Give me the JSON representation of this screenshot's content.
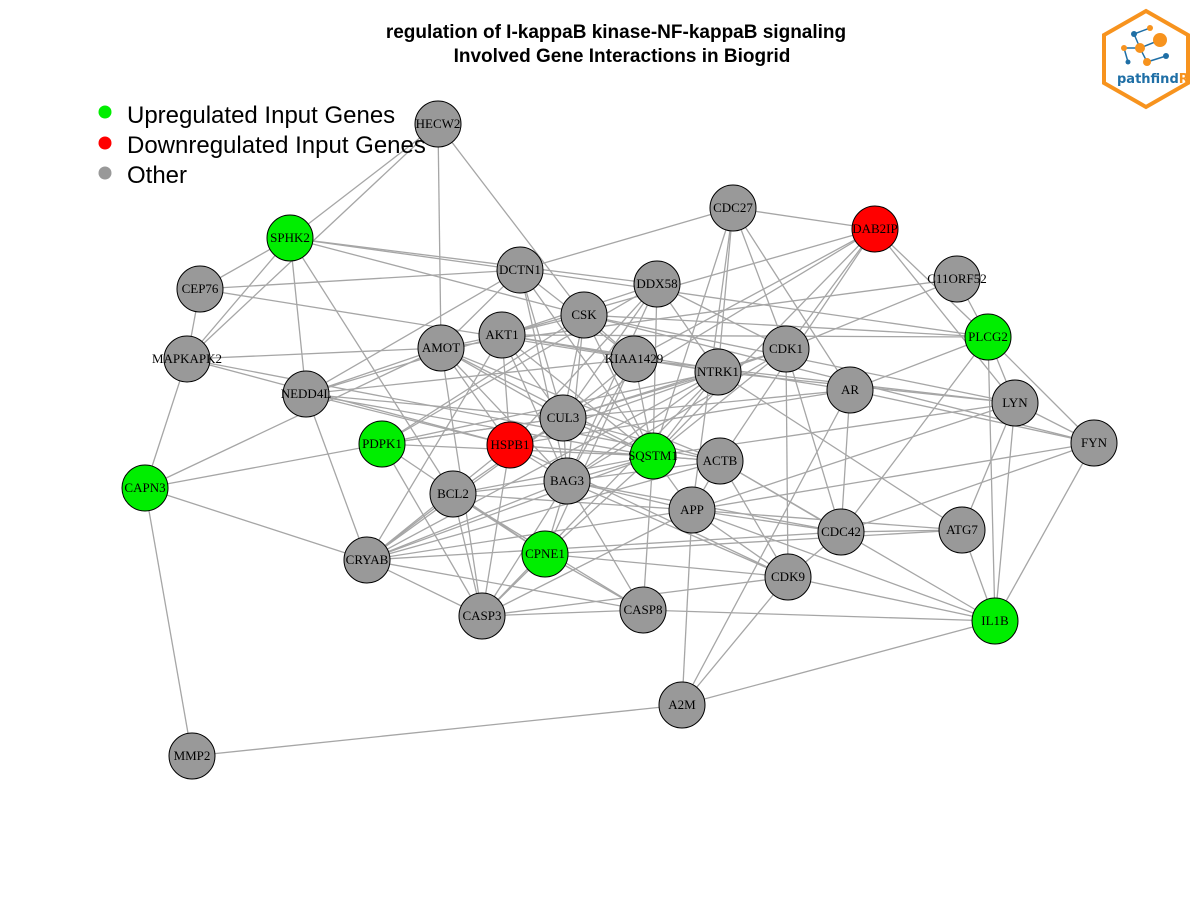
{
  "title": {
    "line1": "regulation of I-kappaB kinase-NF-kappaB signaling",
    "line2": "Involved Gene Interactions in Biogrid"
  },
  "legend": [
    {
      "label": "Upregulated Input Genes",
      "color": "#00ee00"
    },
    {
      "label": "Downregulated Input Genes",
      "color": "#ff0000"
    },
    {
      "label": "Other",
      "color": "#999999"
    }
  ],
  "logo": {
    "text_a": "pathfind",
    "text_b": "R",
    "color_border": "#f7931e",
    "color_text": "#1f6fa6"
  },
  "colors": {
    "up": "#00ee00",
    "down": "#ff0000",
    "other": "#999999",
    "edge": "#a6a6a6"
  },
  "nodes": [
    {
      "id": "HECW2",
      "status": "other"
    },
    {
      "id": "CDC27",
      "status": "other"
    },
    {
      "id": "DAB2IP",
      "status": "down"
    },
    {
      "id": "SPHK2",
      "status": "up"
    },
    {
      "id": "C11ORF52",
      "status": "other"
    },
    {
      "id": "DCTN1",
      "status": "other"
    },
    {
      "id": "DDX58",
      "status": "other"
    },
    {
      "id": "CEP76",
      "status": "other"
    },
    {
      "id": "CSK",
      "status": "other"
    },
    {
      "id": "PLCG2",
      "status": "up"
    },
    {
      "id": "AKT1",
      "status": "other"
    },
    {
      "id": "AMOT",
      "status": "other"
    },
    {
      "id": "CDK1",
      "status": "other"
    },
    {
      "id": "MAPKAPK2",
      "status": "other"
    },
    {
      "id": "KIAA1429",
      "status": "other"
    },
    {
      "id": "NTRK1",
      "status": "other"
    },
    {
      "id": "AR",
      "status": "other"
    },
    {
      "id": "NEDD4L",
      "status": "other"
    },
    {
      "id": "LYN",
      "status": "other"
    },
    {
      "id": "CUL3",
      "status": "other"
    },
    {
      "id": "FYN",
      "status": "other"
    },
    {
      "id": "PDPK1",
      "status": "up"
    },
    {
      "id": "HSPB1",
      "status": "down"
    },
    {
      "id": "SQSTM1",
      "status": "up"
    },
    {
      "id": "ACTB",
      "status": "other"
    },
    {
      "id": "CAPN3",
      "status": "up"
    },
    {
      "id": "BAG3",
      "status": "other"
    },
    {
      "id": "BCL2",
      "status": "other"
    },
    {
      "id": "APP",
      "status": "other"
    },
    {
      "id": "ATG7",
      "status": "other"
    },
    {
      "id": "CDC42",
      "status": "other"
    },
    {
      "id": "CPNE1",
      "status": "up"
    },
    {
      "id": "CRYAB",
      "status": "other"
    },
    {
      "id": "CDK9",
      "status": "other"
    },
    {
      "id": "CASP3",
      "status": "other"
    },
    {
      "id": "CASP8",
      "status": "other"
    },
    {
      "id": "IL1B",
      "status": "up"
    },
    {
      "id": "A2M",
      "status": "other"
    },
    {
      "id": "MMP2",
      "status": "other"
    }
  ],
  "edges": [
    [
      "HECW2",
      "SPHK2"
    ],
    [
      "HECW2",
      "AMOT"
    ],
    [
      "HECW2",
      "CSK"
    ],
    [
      "HECW2",
      "MAPKAPK2"
    ],
    [
      "CDC27",
      "DCTN1"
    ],
    [
      "CDC27",
      "DAB2IP"
    ],
    [
      "CDC27",
      "NTRK1"
    ],
    [
      "CDC27",
      "AR"
    ],
    [
      "CDC27",
      "APP"
    ],
    [
      "CDC27",
      "SQSTM1"
    ],
    [
      "CDC27",
      "CDK1"
    ],
    [
      "DAB2IP",
      "AKT1"
    ],
    [
      "DAB2IP",
      "PLCG2"
    ],
    [
      "DAB2IP",
      "LYN"
    ],
    [
      "DAB2IP",
      "ACTB"
    ],
    [
      "DAB2IP",
      "SQSTM1"
    ],
    [
      "DAB2IP",
      "CDK1"
    ],
    [
      "DAB2IP",
      "KIAA1429"
    ],
    [
      "DAB2IP",
      "CUL3"
    ],
    [
      "SPHK2",
      "DCTN1"
    ],
    [
      "SPHK2",
      "DDX58"
    ],
    [
      "SPHK2",
      "CSK"
    ],
    [
      "SPHK2",
      "MAPKAPK2"
    ],
    [
      "SPHK2",
      "NEDD4L"
    ],
    [
      "SPHK2",
      "BCL2"
    ],
    [
      "SPHK2",
      "CEP76"
    ],
    [
      "C11ORF52",
      "AMOT"
    ],
    [
      "C11ORF52",
      "CDK1"
    ],
    [
      "C11ORF52",
      "PLCG2"
    ],
    [
      "DCTN1",
      "CEP76"
    ],
    [
      "DCTN1",
      "NEDD4L"
    ],
    [
      "DCTN1",
      "CUL3"
    ],
    [
      "DCTN1",
      "SQSTM1"
    ],
    [
      "DCTN1",
      "BAG3"
    ],
    [
      "DCTN1",
      "PLCG2"
    ],
    [
      "DCTN1",
      "KIAA1429"
    ],
    [
      "DCTN1",
      "AMOT"
    ],
    [
      "DDX58",
      "AKT1"
    ],
    [
      "DDX58",
      "SQSTM1"
    ],
    [
      "DDX58",
      "NTRK1"
    ],
    [
      "DDX58",
      "HSPB1"
    ],
    [
      "DDX58",
      "BAG3"
    ],
    [
      "DDX58",
      "CUL3"
    ],
    [
      "DDX58",
      "CDK1"
    ],
    [
      "DDX58",
      "PDPK1"
    ],
    [
      "CEP76",
      "MAPKAPK2"
    ],
    [
      "CEP76",
      "NTRK1"
    ],
    [
      "CSK",
      "AKT1"
    ],
    [
      "CSK",
      "KIAA1429"
    ],
    [
      "CSK",
      "LYN"
    ],
    [
      "CSK",
      "FYN"
    ],
    [
      "CSK",
      "PLCG2"
    ],
    [
      "CSK",
      "PDPK1"
    ],
    [
      "CSK",
      "SQSTM1"
    ],
    [
      "CSK",
      "BAG3"
    ],
    [
      "CSK",
      "CUL3"
    ],
    [
      "PLCG2",
      "LYN"
    ],
    [
      "PLCG2",
      "FYN"
    ],
    [
      "PLCG2",
      "AKT1"
    ],
    [
      "PLCG2",
      "IL1B"
    ],
    [
      "PLCG2",
      "CDC42"
    ],
    [
      "PLCG2",
      "AR"
    ],
    [
      "AKT1",
      "AMOT"
    ],
    [
      "AKT1",
      "HSPB1"
    ],
    [
      "AKT1",
      "CUL3"
    ],
    [
      "AKT1",
      "BAG3"
    ],
    [
      "AKT1",
      "SQSTM1"
    ],
    [
      "AKT1",
      "NEDD4L"
    ],
    [
      "AKT1",
      "CRYAB"
    ],
    [
      "AKT1",
      "AR"
    ],
    [
      "AKT1",
      "NTRK1"
    ],
    [
      "AMOT",
      "MAPKAPK2"
    ],
    [
      "AMOT",
      "NEDD4L"
    ],
    [
      "AMOT",
      "CUL3"
    ],
    [
      "AMOT",
      "HSPB1"
    ],
    [
      "AMOT",
      "SQSTM1"
    ],
    [
      "AMOT",
      "ACTB"
    ],
    [
      "AMOT",
      "CAPN3"
    ],
    [
      "AMOT",
      "CASP3"
    ],
    [
      "AMOT",
      "BAG3"
    ],
    [
      "CDK1",
      "NTRK1"
    ],
    [
      "CDK1",
      "CUL3"
    ],
    [
      "CDK1",
      "BAG3"
    ],
    [
      "CDK1",
      "CDC42"
    ],
    [
      "CDK1",
      "CDK9"
    ],
    [
      "CDK1",
      "SQSTM1"
    ],
    [
      "MAPKAPK2",
      "HSPB1"
    ],
    [
      "MAPKAPK2",
      "CAPN3"
    ],
    [
      "MAPKAPK2",
      "ACTB"
    ],
    [
      "KIAA1429",
      "CUL3"
    ],
    [
      "KIAA1429",
      "SQSTM1"
    ],
    [
      "KIAA1429",
      "BAG3"
    ],
    [
      "KIAA1429",
      "CPNE1"
    ],
    [
      "KIAA1429",
      "LYN"
    ],
    [
      "KIAA1429",
      "NEDD4L"
    ],
    [
      "NTRK1",
      "SQSTM1"
    ],
    [
      "NTRK1",
      "CUL3"
    ],
    [
      "NTRK1",
      "BAG3"
    ],
    [
      "NTRK1",
      "LYN"
    ],
    [
      "NTRK1",
      "ATG7"
    ],
    [
      "NTRK1",
      "PDPK1"
    ],
    [
      "NTRK1",
      "CRYAB"
    ],
    [
      "NTRK1",
      "CASP3"
    ],
    [
      "NTRK1",
      "HSPB1"
    ],
    [
      "AR",
      "HSPB1"
    ],
    [
      "AR",
      "CDC42"
    ],
    [
      "AR",
      "A2M"
    ],
    [
      "AR",
      "CUL3"
    ],
    [
      "AR",
      "FYN"
    ],
    [
      "NEDD4L",
      "CRYAB"
    ],
    [
      "NEDD4L",
      "CUL3"
    ],
    [
      "NEDD4L",
      "SQSTM1"
    ],
    [
      "LYN",
      "FYN"
    ],
    [
      "LYN",
      "IL1B"
    ],
    [
      "LYN",
      "ATG7"
    ],
    [
      "LYN",
      "APP"
    ],
    [
      "LYN",
      "SQSTM1"
    ],
    [
      "CUL3",
      "SQSTM1"
    ],
    [
      "CUL3",
      "BAG3"
    ],
    [
      "CUL3",
      "PDPK1"
    ],
    [
      "CUL3",
      "BCL2"
    ],
    [
      "CUL3",
      "CRYAB"
    ],
    [
      "CUL3",
      "ACTB"
    ],
    [
      "FYN",
      "IL1B"
    ],
    [
      "FYN",
      "CDC42"
    ],
    [
      "FYN",
      "APP"
    ],
    [
      "PDPK1",
      "CUL3"
    ],
    [
      "PDPK1",
      "SQSTM1"
    ],
    [
      "PDPK1",
      "CASP3"
    ],
    [
      "PDPK1",
      "CAPN3"
    ],
    [
      "PDPK1",
      "CPNE1"
    ],
    [
      "HSPB1",
      "SQSTM1"
    ],
    [
      "HSPB1",
      "BAG3"
    ],
    [
      "HSPB1",
      "CASP3"
    ],
    [
      "HSPB1",
      "CRYAB"
    ],
    [
      "HSPB1",
      "ACTB"
    ],
    [
      "HSPB1",
      "CDK9"
    ],
    [
      "HSPB1",
      "NEDD4L"
    ],
    [
      "SQSTM1",
      "BAG3"
    ],
    [
      "SQSTM1",
      "ACTB"
    ],
    [
      "SQSTM1",
      "APP"
    ],
    [
      "SQSTM1",
      "BCL2"
    ],
    [
      "SQSTM1",
      "CRYAB"
    ],
    [
      "SQSTM1",
      "CASP8"
    ],
    [
      "SQSTM1",
      "CPNE1"
    ],
    [
      "ACTB",
      "BAG3"
    ],
    [
      "ACTB",
      "APP"
    ],
    [
      "ACTB",
      "CDC42"
    ],
    [
      "ACTB",
      "CRYAB"
    ],
    [
      "ACTB",
      "CDK9"
    ],
    [
      "ACTB",
      "IL1B"
    ],
    [
      "CAPN3",
      "MMP2"
    ],
    [
      "CAPN3",
      "CRYAB"
    ],
    [
      "BAG3",
      "BCL2"
    ],
    [
      "BAG3",
      "CRYAB"
    ],
    [
      "BAG3",
      "CASP3"
    ],
    [
      "BAG3",
      "CASP8"
    ],
    [
      "BAG3",
      "CPNE1"
    ],
    [
      "BAG3",
      "APP"
    ],
    [
      "BAG3",
      "CDC42"
    ],
    [
      "BAG3",
      "CDK9"
    ],
    [
      "BCL2",
      "CPNE1"
    ],
    [
      "BCL2",
      "CASP3"
    ],
    [
      "BCL2",
      "CRYAB"
    ],
    [
      "BCL2",
      "APP"
    ],
    [
      "BCL2",
      "CASP8"
    ],
    [
      "APP",
      "CDK9"
    ],
    [
      "APP",
      "A2M"
    ],
    [
      "APP",
      "CASP3"
    ],
    [
      "APP",
      "CDC42"
    ],
    [
      "APP",
      "CRYAB"
    ],
    [
      "APP",
      "ATG7"
    ],
    [
      "APP",
      "IL1B"
    ],
    [
      "ATG7",
      "CDC42"
    ],
    [
      "ATG7",
      "IL1B"
    ],
    [
      "ATG7",
      "CPNE1"
    ],
    [
      "CDC42",
      "CDK9"
    ],
    [
      "CDC42",
      "CRYAB"
    ],
    [
      "CPNE1",
      "CASP3"
    ],
    [
      "CPNE1",
      "CASP8"
    ],
    [
      "CPNE1",
      "CDK9"
    ],
    [
      "CRYAB",
      "CASP3"
    ],
    [
      "CRYAB",
      "CASP8"
    ],
    [
      "CDK9",
      "CASP3"
    ],
    [
      "CDK9",
      "A2M"
    ],
    [
      "CDK9",
      "IL1B"
    ],
    [
      "CASP3",
      "CASP8"
    ],
    [
      "CASP8",
      "IL1B"
    ],
    [
      "IL1B",
      "A2M"
    ],
    [
      "A2M",
      "MMP2"
    ]
  ]
}
